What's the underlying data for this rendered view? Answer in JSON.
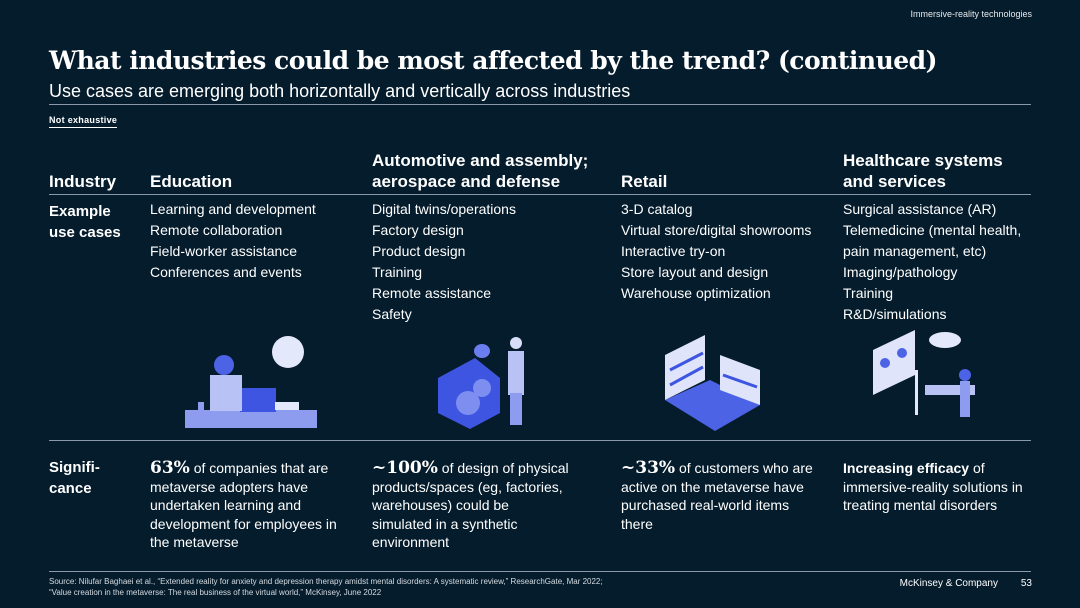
{
  "header": {
    "section": "Immersive-reality technologies",
    "title": "What industries could be most affected by the trend? (continued)",
    "subtitle": "Use cases are emerging both horizontally and vertically across industries",
    "tag": "Not exhaustive"
  },
  "row_labels": {
    "industry": "Industry",
    "use_cases_1": "Example",
    "use_cases_2": "use cases",
    "significance_1": "Signifi-",
    "significance_2": "cance"
  },
  "columns": [
    {
      "header_1": "",
      "header_2": "Education",
      "illustration": "teacher-vr-icon",
      "use_cases": [
        "Learning and development",
        "Remote collaboration",
        "Field-worker assistance",
        "Conferences and events"
      ],
      "sig_bold": "63%",
      "sig_text": " of companies that are metaverse adopters have undertaken learning and development for employees in the metaverse"
    },
    {
      "header_1": "Automotive and assembly;",
      "header_2": "aerospace and defense",
      "illustration": "engineer-gears-icon",
      "use_cases": [
        "Digital twins/operations",
        "Factory design",
        "Product design",
        "Training",
        "Remote assistance",
        "Safety"
      ],
      "sig_bold": "~100%",
      "sig_text": " of design of physical products/spaces (eg, factories, warehouses) could be simulated in a synthetic environment"
    },
    {
      "header_1": "",
      "header_2": "Retail",
      "illustration": "store-shelves-icon",
      "use_cases": [
        "3-D catalog",
        "Virtual store/digital showrooms",
        "Interactive try-on",
        "Store layout and design",
        "Warehouse optimization"
      ],
      "sig_bold": "~33%",
      "sig_text": " of customers who are active on the metaverse have purchased real-world items there"
    },
    {
      "header_1": "Healthcare systems",
      "header_2": "and services",
      "illustration": "surgery-room-icon",
      "use_cases": [
        "Surgical assistance (AR)",
        "Telemedicine (mental health,",
        "pain management, etc)",
        "Imaging/pathology",
        "Training",
        "R&D/simulations"
      ],
      "sig_bold": "Increasing efficacy",
      "sig_text": " of immersive-reality solutions in treating mental disorders"
    }
  ],
  "footer": {
    "source_1": "Source: Nilufar Baghaei et al., “Extended reality for anxiety and depression therapy amidst mental disorders: A systematic review,” ResearchGate, Mar 2022;",
    "source_2": "“Value creation in the metaverse: The real business of the virtual world,” McKinsey, June 2022",
    "company": "McKinsey & Company",
    "page": "53"
  },
  "colors": {
    "background": "#051c2c",
    "illustration": "#5b6ee8",
    "illustration_light": "#b9c2f5"
  }
}
